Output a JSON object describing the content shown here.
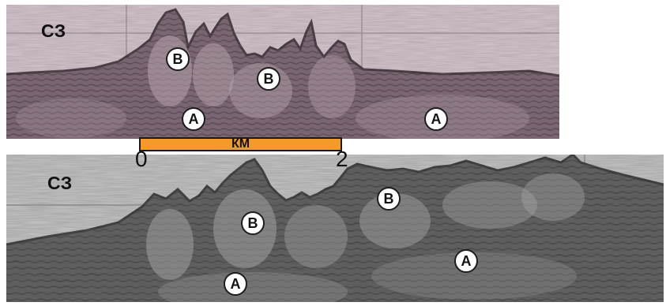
{
  "top_panel": {
    "label": "СЗ",
    "markers": [
      {
        "text": "B"
      },
      {
        "text": "B"
      },
      {
        "text": "A"
      },
      {
        "text": "A"
      }
    ]
  },
  "scale_bar": {
    "unit": "КМ",
    "start": "0",
    "end": "2",
    "color": "#f39a2b"
  },
  "bottom_panel": {
    "label": "СЗ",
    "markers": [
      {
        "text": "B"
      },
      {
        "text": "B"
      },
      {
        "text": "A"
      },
      {
        "text": "A"
      }
    ]
  }
}
